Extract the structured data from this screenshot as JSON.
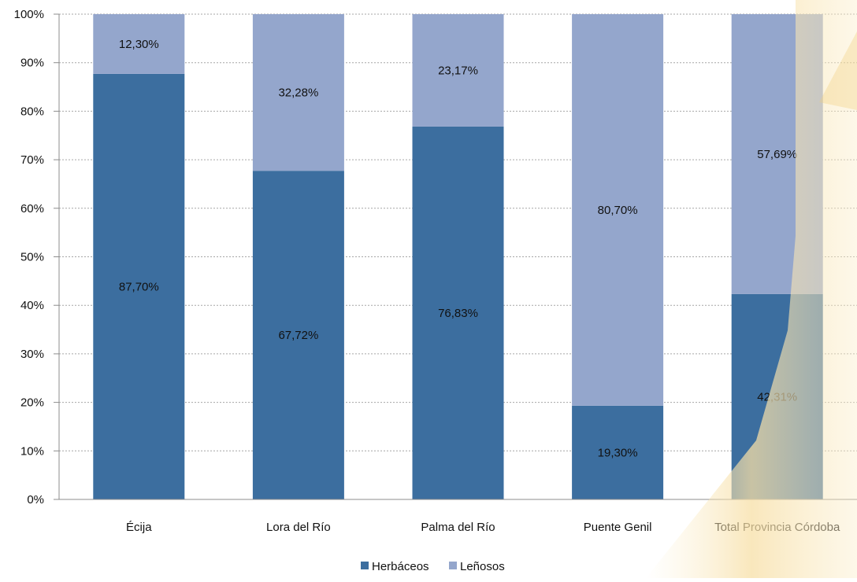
{
  "colors": {
    "herbaceos": "#3c6e9f",
    "lenosos": "#94a6cc",
    "gridline": "#a6a6a6",
    "axis": "#8c8c8c",
    "background_accent": "#f7dfa6"
  },
  "legend": {
    "position": "bottom-center"
  },
  "chart_data": {
    "type": "bar",
    "stacked": true,
    "percent": true,
    "categories": [
      "Écija",
      "Lora del Río",
      "Palma del Río",
      "Puente Genil",
      "Total Provincia Córdoba"
    ],
    "series": [
      {
        "name": "Herbáceos",
        "values": [
          87.7,
          67.72,
          76.83,
          19.3,
          42.31
        ],
        "labels": [
          "87,70%",
          "67,72%",
          "76,83%",
          "19,30%",
          "42,31%"
        ]
      },
      {
        "name": "Leñosos",
        "values": [
          12.3,
          32.28,
          23.17,
          80.7,
          57.69
        ],
        "labels": [
          "12,30%",
          "32,28%",
          "23,17%",
          "80,70%",
          "57,69%"
        ]
      }
    ],
    "y_ticks": [
      "0%",
      "10%",
      "20%",
      "30%",
      "40%",
      "50%",
      "60%",
      "70%",
      "80%",
      "90%",
      "100%"
    ],
    "ylim": [
      0,
      100
    ],
    "grid": true,
    "xlabel": "",
    "ylabel": ""
  }
}
